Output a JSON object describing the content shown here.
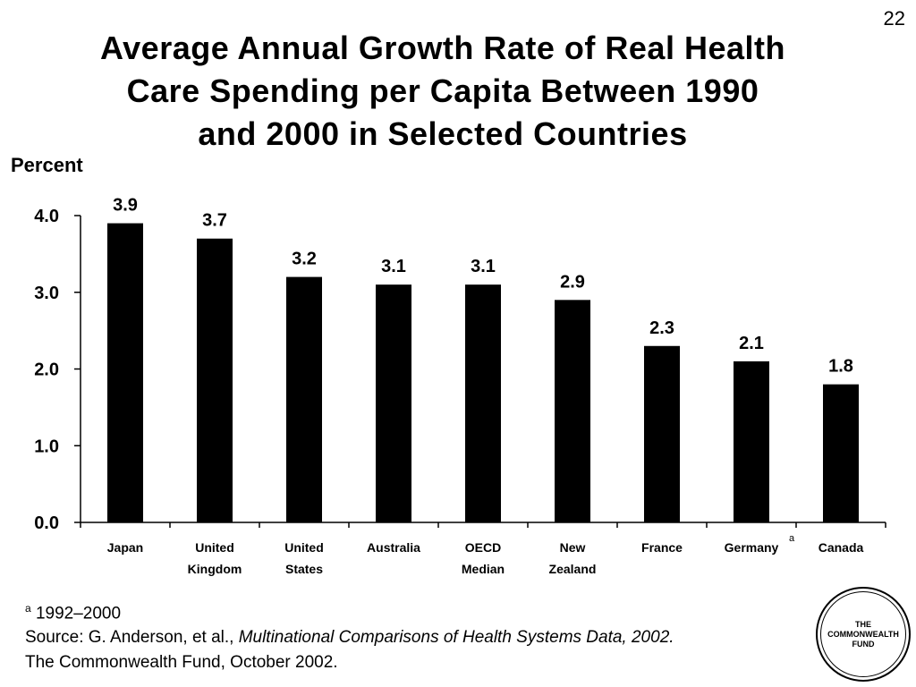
{
  "page_number": "22",
  "title_lines": [
    "Average Annual Growth Rate of Real Health",
    "Care Spending per Capita Between 1990",
    "and 2000 in Selected Countries"
  ],
  "footnote": {
    "marker": "a",
    "text": "1992–2000"
  },
  "source": {
    "prefix": "Source: G. Anderson, et al., ",
    "italic": "Multinational Comparisons of Health Systems Data, 2002.",
    "org_line": "The Commonwealth Fund, October 2002."
  },
  "logo": {
    "lines": [
      "THE",
      "COMMONWEALTH",
      "FUND"
    ]
  },
  "chart_data": {
    "type": "bar",
    "title": "Average Annual Growth Rate of Real Health Care Spending per Capita Between 1990 and 2000 in Selected Countries",
    "ylabel": "Percent",
    "xlabel": "",
    "ylim": [
      0,
      4
    ],
    "yticks": [
      "0.0",
      "1.0",
      "2.0",
      "3.0",
      "4.0"
    ],
    "grid": false,
    "bar_color": "#000000",
    "categories": [
      [
        "Japan"
      ],
      [
        "United",
        "Kingdom"
      ],
      [
        "United",
        "States"
      ],
      [
        "Australia"
      ],
      [
        "OECD",
        "Median"
      ],
      [
        "New",
        "Zealand"
      ],
      [
        "France"
      ],
      [
        "Germany"
      ],
      [
        "Canada"
      ]
    ],
    "category_marks": [
      "",
      "",
      "",
      "",
      "",
      "",
      "",
      "a",
      ""
    ],
    "values": [
      3.9,
      3.7,
      3.2,
      3.1,
      3.1,
      2.9,
      2.3,
      2.1,
      1.8
    ],
    "value_labels": [
      "3.9",
      "3.7",
      "3.2",
      "3.1",
      "3.1",
      "2.9",
      "2.3",
      "2.1",
      "1.8"
    ]
  }
}
